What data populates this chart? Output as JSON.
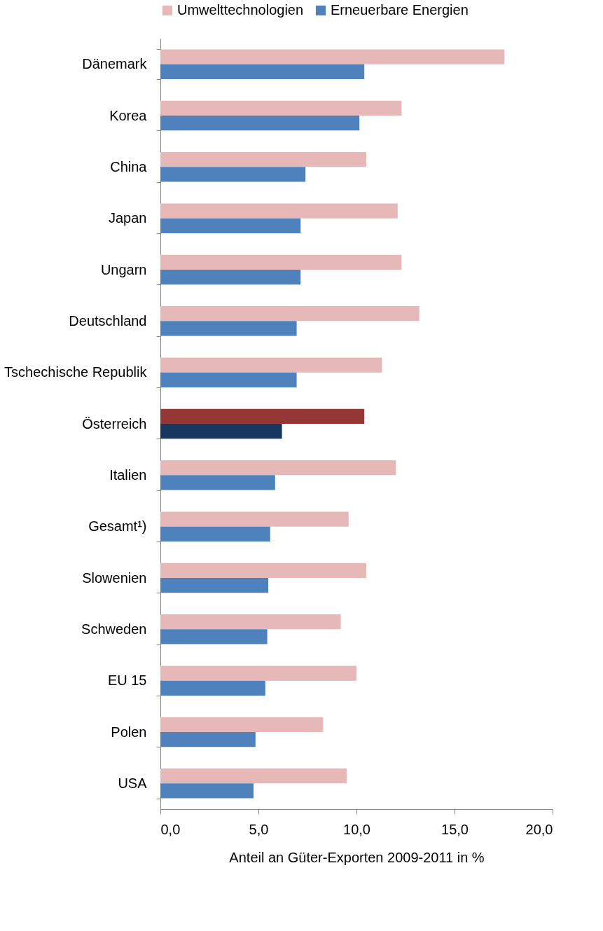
{
  "chart_data": {
    "type": "bar",
    "orientation": "horizontal",
    "xlabel": "Anteil an  Güter-Exporten 2009-2011 in %",
    "categories": [
      "Dänemark",
      "Korea",
      "China",
      "Japan",
      "Ungarn",
      "Deutschland",
      "Tschechische Republik",
      "Österreich",
      "Italien",
      "Gesamt¹)",
      "Slowenien",
      "Schweden",
      "EU 15",
      "Polen",
      "USA"
    ],
    "series": [
      {
        "name": "Umwelttechnologien",
        "color": "#e6b9b8",
        "colors": [
          "#e6b9b8",
          "#e6b9b8",
          "#e6b9b8",
          "#e6b9b8",
          "#e6b9b8",
          "#e6b9b8",
          "#e6b9b8",
          "#943634",
          "#e6b9b8",
          "#e6b9b8",
          "#e6b9b8",
          "#e6b9b8",
          "#e6b9b8",
          "#e6b9b8",
          "#e6b9b8"
        ],
        "values": [
          17.55,
          12.3,
          10.5,
          12.1,
          12.3,
          13.2,
          11.3,
          10.4,
          12.0,
          9.6,
          10.5,
          9.2,
          10.0,
          8.3,
          9.5
        ]
      },
      {
        "name": "Erneuerbare Energien",
        "color": "#4f81bd",
        "colors": [
          "#4f81bd",
          "#4f81bd",
          "#4f81bd",
          "#4f81bd",
          "#4f81bd",
          "#4f81bd",
          "#4f81bd",
          "#17375e",
          "#4f81bd",
          "#4f81bd",
          "#4f81bd",
          "#4f81bd",
          "#4f81bd",
          "#4f81bd",
          "#4f81bd"
        ],
        "values": [
          10.4,
          10.15,
          7.4,
          7.15,
          7.15,
          6.95,
          6.95,
          6.2,
          5.85,
          5.6,
          5.5,
          5.45,
          5.35,
          4.85,
          4.75
        ]
      }
    ],
    "xlim": [
      0,
      20
    ],
    "xticks": [
      {
        "value": 0,
        "label": "0,0"
      },
      {
        "value": 5,
        "label": "5,0"
      },
      {
        "value": 10,
        "label": "10,0"
      },
      {
        "value": 15,
        "label": "15,0"
      },
      {
        "value": 20,
        "label": "20,0"
      }
    ],
    "legend": "top",
    "grid": false
  }
}
